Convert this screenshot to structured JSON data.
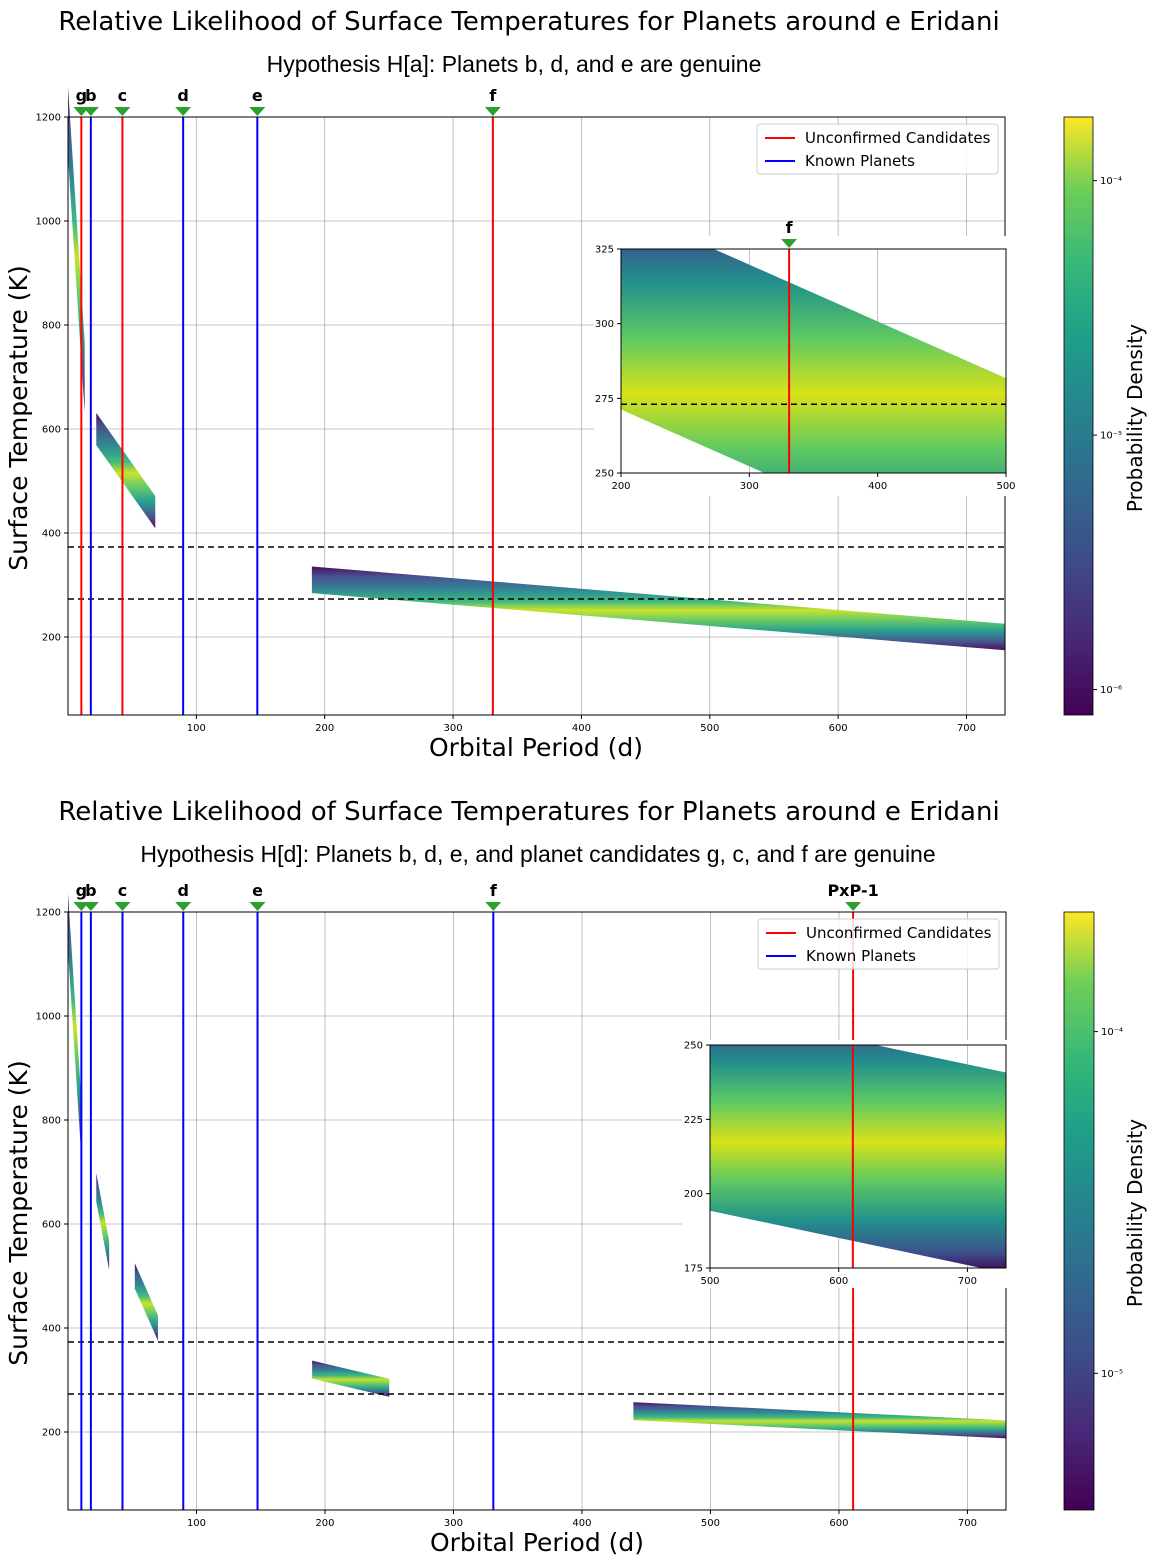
{
  "chart_data": [
    {
      "type": "heatmap",
      "title": "Relative Likelihood of Surface Temperatures for Planets around  e Eridani",
      "subtitle": "Hypothesis H[a]: Planets b, d, and e are genuine",
      "xlabel": "Orbital Period (d)",
      "ylabel": "Surface Temperature (K)",
      "xlim": [
        0,
        730
      ],
      "ylim": [
        50,
        1200
      ],
      "x_ticks": [
        "100",
        "200",
        "300",
        "400",
        "500",
        "600",
        "700"
      ],
      "y_ticks": [
        "200",
        "400",
        "600",
        "800",
        "1000",
        "1200"
      ],
      "habitable_zone_lines_K": [
        373,
        273
      ],
      "legend": {
        "unconfirmed": "Unconfirmed Candidates",
        "known": "Known Planets",
        "placement": "top-right"
      },
      "colorbar": {
        "label": "Probability Density",
        "ticks": [
          "10⁻⁶",
          "10⁻⁵",
          "10⁻⁴"
        ],
        "log_range": [
          -6.1,
          -3.75
        ]
      },
      "planets": [
        {
          "name": "g",
          "period": 10.4,
          "status": "unconfirmed"
        },
        {
          "name": "b",
          "period": 17.8,
          "status": "known"
        },
        {
          "name": "c",
          "period": 42.4,
          "status": "unconfirmed"
        },
        {
          "name": "d",
          "period": 89.7,
          "status": "known"
        },
        {
          "name": "e",
          "period": 147.5,
          "status": "known"
        },
        {
          "name": "f",
          "period": 331.0,
          "status": "unconfirmed"
        }
      ],
      "density_bands": [
        {
          "name": "g-b band",
          "x_start": 0,
          "x_end": 13,
          "t_start": 1190,
          "t_end": 700
        },
        {
          "name": "c band",
          "x_start": 22,
          "x_end": 68,
          "t_start": 600,
          "t_end": 440
        },
        {
          "name": "outer band",
          "x_start": 190,
          "x_end": 730,
          "t_start": 310,
          "t_end": 200
        }
      ],
      "inset": {
        "marker": "f",
        "xlim": [
          200,
          500
        ],
        "ylim": [
          250,
          325
        ],
        "x_ticks": [
          "200",
          "300",
          "400",
          "500"
        ],
        "y_ticks": [
          "250",
          "275",
          "300",
          "325"
        ],
        "red_line_period": 331.0,
        "hz_line_K": 273,
        "band": {
          "x_start": 200,
          "x_end": 500,
          "t_start": 305,
          "t_end": 248
        }
      }
    },
    {
      "type": "heatmap",
      "title": "Relative Likelihood of Surface Temperatures for Planets around  e Eridani",
      "subtitle": "Hypothesis H[d]: Planets b, d, e, and planet candidates g, c, and f are genuine",
      "xlabel": "Orbital Period (d)",
      "ylabel": "Surface Temperature (K)",
      "xlim": [
        0,
        730
      ],
      "ylim": [
        50,
        1200
      ],
      "x_ticks": [
        "100",
        "200",
        "300",
        "400",
        "500",
        "600",
        "700"
      ],
      "y_ticks": [
        "200",
        "400",
        "600",
        "800",
        "1000",
        "1200"
      ],
      "habitable_zone_lines_K": [
        373,
        273
      ],
      "legend": {
        "unconfirmed": "Unconfirmed Candidates",
        "known": "Known Planets",
        "placement": "top-right"
      },
      "colorbar": {
        "label": "Probability Density",
        "ticks": [
          "10⁻⁵",
          "10⁻⁴"
        ],
        "log_range": [
          -5.4,
          -3.65
        ]
      },
      "planets": [
        {
          "name": "g",
          "period": 10.4,
          "status": "known"
        },
        {
          "name": "b",
          "period": 17.8,
          "status": "known"
        },
        {
          "name": "c",
          "period": 42.4,
          "status": "known"
        },
        {
          "name": "d",
          "period": 89.7,
          "status": "known"
        },
        {
          "name": "e",
          "period": 147.5,
          "status": "known"
        },
        {
          "name": "f",
          "period": 331.0,
          "status": "known"
        },
        {
          "name": "PxP-1",
          "period": 611.0,
          "status": "unconfirmed"
        }
      ],
      "density_bands": [
        {
          "name": "g-b band",
          "x_start": 0,
          "x_end": 10,
          "t_start": 1180,
          "t_end": 800
        },
        {
          "name": "c blob",
          "x_start": 22,
          "x_end": 32,
          "t_start": 670,
          "t_end": 540
        },
        {
          "name": "d blob",
          "x_start": 52,
          "x_end": 70,
          "t_start": 500,
          "t_end": 400
        },
        {
          "name": "e blob",
          "x_start": 190,
          "x_end": 250,
          "t_start": 320,
          "t_end": 285
        },
        {
          "name": "outer band",
          "x_start": 440,
          "x_end": 730,
          "t_start": 240,
          "t_end": 205
        }
      ],
      "inset": {
        "marker": "",
        "xlim": [
          500,
          730
        ],
        "ylim": [
          175,
          250
        ],
        "x_ticks": [
          "500",
          "600",
          "700"
        ],
        "y_ticks": [
          "175",
          "200",
          "225",
          "250"
        ],
        "red_line_period": 611.0,
        "hz_line_K": null,
        "band": {
          "x_start": 500,
          "x_end": 730,
          "t_start": 228,
          "t_end": 207
        }
      }
    }
  ],
  "colors": {
    "unconfirmed": "#ff0000",
    "known": "#0000ff",
    "marker": "#2ca02c",
    "grid": "#b0b0b0"
  }
}
